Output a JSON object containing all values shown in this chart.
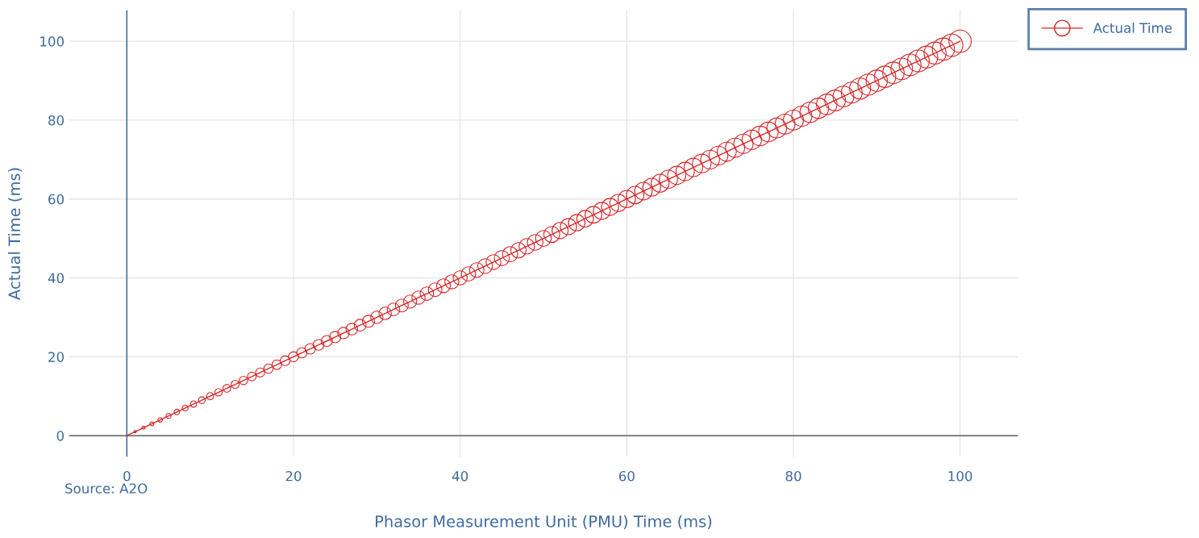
{
  "chart_data": {
    "type": "bubble",
    "xlabel": "Phasor Measurement Unit (PMU) Time (ms)",
    "ylabel": "Actual Time (ms)",
    "annotations": [
      "Source: A2O"
    ],
    "xlim": [
      -7,
      107
    ],
    "xticks": [
      0,
      20,
      40,
      60,
      80,
      100
    ],
    "ylim": [
      -5.5,
      108
    ],
    "yticks": [
      0,
      20,
      40,
      60,
      80,
      100
    ],
    "ref_lines": [
      {
        "axis": "x",
        "value": 0,
        "color": "#2f5f95"
      },
      {
        "axis": "y",
        "value": 0,
        "color": "#444444"
      }
    ],
    "grid": true,
    "legend": "top right",
    "marker": "circle",
    "line_style": "solid",
    "x": [
      0,
      1,
      2,
      3,
      4,
      5,
      6,
      7,
      8,
      9,
      10,
      11,
      12,
      13,
      14,
      15,
      16,
      17,
      18,
      19,
      20,
      21,
      22,
      23,
      24,
      25,
      26,
      27,
      28,
      29,
      30,
      31,
      32,
      33,
      34,
      35,
      36,
      37,
      38,
      39,
      40,
      41,
      42,
      43,
      44,
      45,
      46,
      47,
      48,
      49,
      50,
      51,
      52,
      53,
      54,
      55,
      56,
      57,
      58,
      59,
      60,
      61,
      62,
      63,
      64,
      65,
      66,
      67,
      68,
      69,
      70,
      71,
      72,
      73,
      74,
      75,
      76,
      77,
      78,
      79,
      80,
      81,
      82,
      83,
      84,
      85,
      86,
      87,
      88,
      89,
      90,
      91,
      92,
      93,
      94,
      95,
      96,
      97,
      98,
      99,
      100
    ],
    "series": [
      {
        "type": "line",
        "marker": "none",
        "color": "#d62728",
        "values": [
          0,
          1,
          2,
          3,
          4,
          5,
          6,
          7,
          8,
          9,
          10,
          11,
          12,
          13,
          14,
          15,
          16,
          17,
          18,
          19,
          20,
          21,
          22,
          23,
          24,
          25,
          26,
          27,
          28,
          29,
          30,
          31,
          32,
          33,
          34,
          35,
          36,
          37,
          38,
          39,
          40,
          41,
          42,
          43,
          44,
          45,
          46,
          47,
          48,
          49,
          50,
          51,
          52,
          53,
          54,
          55,
          56,
          57,
          58,
          59,
          60,
          61,
          62,
          63,
          64,
          65,
          66,
          67,
          68,
          69,
          70,
          71,
          72,
          73,
          74,
          75,
          76,
          77,
          78,
          79,
          80,
          81,
          82,
          83,
          84,
          85,
          86,
          87,
          88,
          89,
          90,
          91,
          92,
          93,
          94,
          95,
          96,
          97,
          98,
          99,
          100
        ]
      },
      {
        "name": "Actual Time",
        "color": "#d62728",
        "values": [
          0,
          1,
          2,
          3,
          4,
          5,
          6,
          7,
          8,
          9,
          10,
          11,
          12,
          13,
          14,
          15,
          16,
          17,
          18,
          19,
          20,
          21,
          22,
          23,
          24,
          25,
          26,
          27,
          28,
          29,
          30,
          31,
          32,
          33,
          34,
          35,
          36,
          37,
          38,
          39,
          40,
          41,
          42,
          43,
          44,
          45,
          46,
          47,
          48,
          49,
          50,
          51,
          52,
          53,
          54,
          55,
          56,
          57,
          58,
          59,
          60,
          61,
          62,
          63,
          64,
          65,
          66,
          67,
          68,
          69,
          70,
          71,
          72,
          73,
          74,
          75,
          76,
          77,
          78,
          79,
          80,
          81,
          82,
          83,
          84,
          85,
          86,
          87,
          88,
          89,
          90,
          91,
          92,
          93,
          94,
          95,
          96,
          97,
          98,
          99,
          100
        ],
        "sizes": [
          0.003,
          0.01,
          0.02,
          0.03,
          0.04,
          0.05,
          0.06,
          0.07,
          0.08,
          0.09,
          0.1,
          0.11,
          0.12,
          0.13,
          0.14,
          0.15,
          0.16,
          0.17,
          0.18,
          0.19,
          0.2,
          0.21,
          0.22,
          0.23,
          0.24,
          0.25,
          0.26,
          0.27,
          0.28,
          0.29,
          0.3,
          0.31,
          0.32,
          0.33,
          0.34,
          0.35,
          0.36,
          0.37,
          0.38,
          0.39,
          0.4,
          0.41,
          0.42,
          0.43,
          0.44,
          0.45,
          0.46,
          0.47,
          0.48,
          0.49,
          0.5,
          0.51,
          0.52,
          0.53,
          0.54,
          0.55,
          0.56,
          0.57,
          0.58,
          0.59,
          0.6,
          0.61,
          0.62,
          0.63,
          0.64,
          0.65,
          0.66,
          0.67,
          0.68,
          0.69,
          0.7,
          0.71,
          0.72,
          0.73,
          0.74,
          0.75,
          0.76,
          0.77,
          0.78,
          0.79,
          0.8,
          0.81,
          0.82,
          0.83,
          0.84,
          0.85,
          0.86,
          0.87,
          0.88,
          0.89,
          0.9,
          0.91,
          0.92,
          0.93,
          0.94,
          0.95,
          0.96,
          0.97,
          0.98,
          0.99,
          1
        ]
      }
    ]
  }
}
